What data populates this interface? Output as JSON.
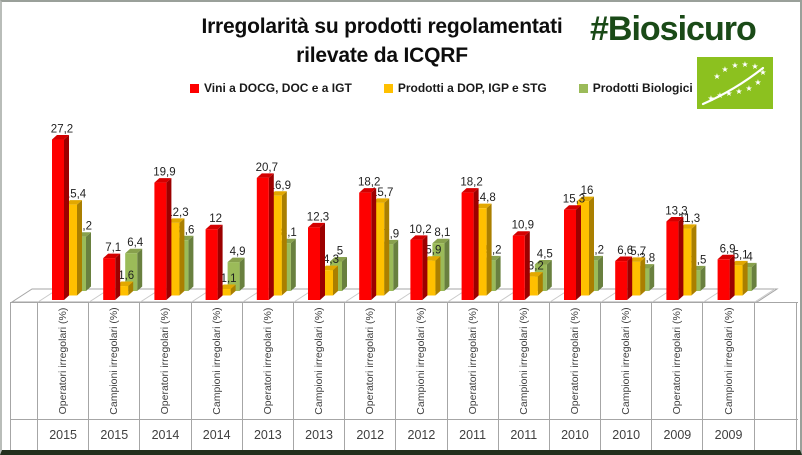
{
  "header": {
    "title_line1": "Irregolarità su prodotti regolamentati",
    "title_line2": "rilevate da ICQRF",
    "hashtag": "#Biosicuro",
    "hashtag_color": "#1a4a17"
  },
  "legend": [
    {
      "label": "Vini a DOCG, DOC e a IGT",
      "color": "#fe0000"
    },
    {
      "label": "Prodotti a DOP, IGP e STG",
      "color": "#ffc000"
    },
    {
      "label": "Prodotti Biologici",
      "color": "#9bbb59"
    }
  ],
  "logo": {
    "description": "eu-organic-leaf-logo",
    "background": "#8cc11f",
    "star_color": "#ffffff"
  },
  "chart_data": {
    "type": "bar",
    "style": "3d-clustered-column",
    "title": "Irregolarità su prodotti regolamentati rilevate da ICQRF",
    "ylabel": "",
    "xlabel": "",
    "ylim": [
      0,
      30
    ],
    "grid": false,
    "legend_position": "top",
    "decimal_separator": ",",
    "categories": [
      {
        "axis_label": "Operatori irregolari (%)",
        "year": "2015"
      },
      {
        "axis_label": "Campioni irregolari (%)",
        "year": "2015"
      },
      {
        "axis_label": "Operatori irregolari (%)",
        "year": "2014"
      },
      {
        "axis_label": "Campioni irregolari (%)",
        "year": "2014"
      },
      {
        "axis_label": "Operatori irregolari (%)",
        "year": "2013"
      },
      {
        "axis_label": "Campioni irregolari (%)",
        "year": "2013"
      },
      {
        "axis_label": "Operatori irregolari (%)",
        "year": "2012"
      },
      {
        "axis_label": "Campioni irregolari (%)",
        "year": "2012"
      },
      {
        "axis_label": "Operatori irregolari (%)",
        "year": "2011"
      },
      {
        "axis_label": "Campioni irregolari (%)",
        "year": "2011"
      },
      {
        "axis_label": "Operatori irregolari (%)",
        "year": "2010"
      },
      {
        "axis_label": "Campioni irregolari (%)",
        "year": "2010"
      },
      {
        "axis_label": "Operatori irregolari (%)",
        "year": "2009"
      },
      {
        "axis_label": "Campioni irregolari (%)",
        "year": "2009"
      }
    ],
    "series": [
      {
        "name": "Vini a DOCG, DOC e a IGT",
        "color": "#fe0000",
        "side_color": "#9c0000",
        "top_color": "#d40000",
        "values": [
          27.2,
          7.1,
          19.9,
          12,
          20.7,
          12.3,
          18.2,
          10.2,
          18.2,
          10.9,
          15.3,
          6.6,
          13.3,
          6.9
        ]
      },
      {
        "name": "Prodotti a DOP, IGP e STG",
        "color": "#ffc000",
        "side_color": "#aa7f00",
        "top_color": "#e2a800",
        "values": [
          15.4,
          1.6,
          12.3,
          1.1,
          16.9,
          4.3,
          15.7,
          5.9,
          14.8,
          3.2,
          16,
          5.7,
          11.3,
          5.1
        ]
      },
      {
        "name": "Prodotti Biologici",
        "color": "#9bbb59",
        "side_color": "#69803f",
        "top_color": "#88a14d",
        "values": [
          9.2,
          6.4,
          8.6,
          4.9,
          8.1,
          5,
          7.9,
          8.1,
          5.2,
          4.5,
          5.2,
          3.8,
          3.5,
          4
        ]
      }
    ]
  }
}
